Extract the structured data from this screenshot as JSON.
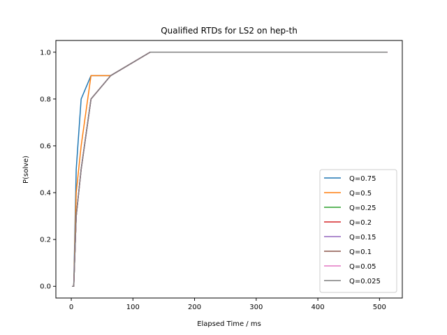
{
  "chart_data": {
    "type": "line",
    "title": "Qualified RTDs for LS2 on hep-th",
    "xlabel": "Elapsed Time / ms",
    "ylabel": "P(solve)",
    "xlim": [
      -25,
      537
    ],
    "ylim": [
      -0.05,
      1.05
    ],
    "xticks": [
      0,
      100,
      200,
      300,
      400,
      500
    ],
    "yticks": [
      0.0,
      0.2,
      0.4,
      0.6,
      0.8,
      1.0
    ],
    "grid": false,
    "legend_position": "bottom-right",
    "series": [
      {
        "name": "Q=0.75",
        "color": "#1f77b4",
        "x": [
          2,
          4,
          8,
          16,
          32,
          64,
          128,
          256,
          512
        ],
        "y": [
          0.0,
          0.0,
          0.5,
          0.8,
          0.9,
          0.9,
          1.0,
          1.0,
          1.0
        ]
      },
      {
        "name": "Q=0.5",
        "color": "#ff7f0e",
        "x": [
          2,
          4,
          8,
          16,
          32,
          64,
          128,
          256,
          512
        ],
        "y": [
          0.0,
          0.0,
          0.4,
          0.6,
          0.9,
          0.9,
          1.0,
          1.0,
          1.0
        ]
      },
      {
        "name": "Q=0.25",
        "color": "#2ca02c",
        "x": [
          2,
          4,
          8,
          16,
          32,
          64,
          128,
          256,
          512
        ],
        "y": [
          0.0,
          0.0,
          0.3,
          0.5,
          0.8,
          0.9,
          1.0,
          1.0,
          1.0
        ]
      },
      {
        "name": "Q=0.2",
        "color": "#d62728",
        "x": [
          2,
          4,
          8,
          16,
          32,
          64,
          128,
          256,
          512
        ],
        "y": [
          0.0,
          0.0,
          0.3,
          0.5,
          0.8,
          0.9,
          1.0,
          1.0,
          1.0
        ]
      },
      {
        "name": "Q=0.15",
        "color": "#9467bd",
        "x": [
          2,
          4,
          8,
          16,
          32,
          64,
          128,
          256,
          512
        ],
        "y": [
          0.0,
          0.0,
          0.3,
          0.5,
          0.8,
          0.9,
          1.0,
          1.0,
          1.0
        ]
      },
      {
        "name": "Q=0.1",
        "color": "#8c564b",
        "x": [
          2,
          4,
          8,
          16,
          32,
          64,
          128,
          256,
          512
        ],
        "y": [
          0.0,
          0.0,
          0.3,
          0.5,
          0.8,
          0.9,
          1.0,
          1.0,
          1.0
        ]
      },
      {
        "name": "Q=0.05",
        "color": "#e377c2",
        "x": [
          2,
          4,
          8,
          16,
          32,
          64,
          128,
          256,
          512
        ],
        "y": [
          0.0,
          0.0,
          0.3,
          0.5,
          0.8,
          0.9,
          1.0,
          1.0,
          1.0
        ]
      },
      {
        "name": "Q=0.025",
        "color": "#7f7f7f",
        "x": [
          2,
          4,
          8,
          16,
          32,
          64,
          128,
          256,
          512
        ],
        "y": [
          0.0,
          0.0,
          0.3,
          0.5,
          0.8,
          0.9,
          1.0,
          1.0,
          1.0
        ]
      }
    ]
  }
}
